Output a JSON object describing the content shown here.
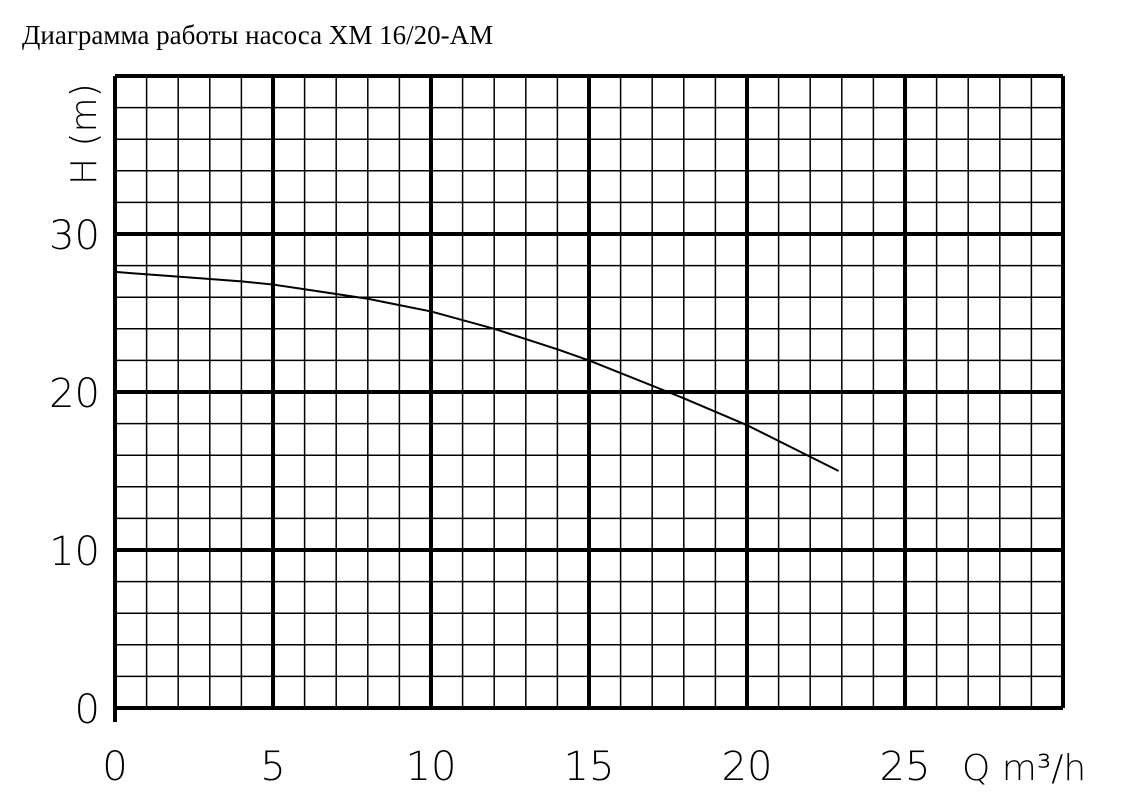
{
  "chart_data": {
    "type": "line",
    "title": "Диаграмма работы насоса XM 16/20-AM",
    "xlabel": "Q m³/h",
    "ylabel": "H (m)",
    "xlim": [
      0,
      30
    ],
    "ylim": [
      0,
      40
    ],
    "xticks": [
      0,
      5,
      10,
      15,
      20,
      25
    ],
    "yticks": [
      0,
      10,
      20,
      30
    ],
    "grid": true,
    "color": "#000000",
    "series": [
      {
        "x": [
          0,
          2,
          4,
          5,
          6,
          8,
          10,
          12,
          14,
          15,
          16,
          17.5,
          18,
          20,
          22,
          22.9
        ],
        "y": [
          27.6,
          27.3,
          27.0,
          26.8,
          26.5,
          25.9,
          25.1,
          24.0,
          22.7,
          22.0,
          21.2,
          20.0,
          19.6,
          17.9,
          15.9,
          15.0
        ]
      }
    ]
  }
}
